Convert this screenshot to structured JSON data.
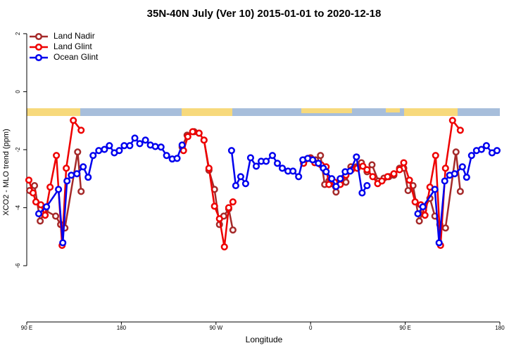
{
  "chart_data": {
    "type": "line",
    "title": "35N-40N July (Ver 10)   2015-01-01 to 2020-12-18",
    "x_label": "Longitude",
    "y_label": "XCO2 - MLO trend (ppm)",
    "xlim": [
      90,
      540
    ],
    "xticks": [
      {
        "value": 90,
        "label": "90 E"
      },
      180,
      {
        "value": 270,
        "label": "90 W"
      },
      {
        "value": 360,
        "label": "0"
      },
      {
        "value": 450,
        "label": "90 E"
      },
      {
        "value": 540,
        "label": "180"
      }
    ],
    "ylim": [
      -7.94,
      2.24
    ],
    "yticks": [
      2,
      0,
      -2,
      -4,
      -6
    ],
    "legend": "top-left",
    "series": [
      {
        "name": "Land Nadir",
        "color": "#a52a2a",
        "x": [
          92.7,
          97.4,
          102.8,
          107.5,
          117.5,
          122.2,
          126.3,
          138.4,
          141.7,
          null,
          237.8,
          242.5,
          249.2,
          253.9,
          258.6,
          263.3,
          268.6,
          273.3,
          277.4,
          282.1,
          286.1,
          null,
          354.6,
          360,
          364.7,
          369.4,
          373.4,
          377.4,
          384.2,
          388.2,
          393.6,
          398.3,
          403.6,
          408.3,
          413.7,
          418.4,
          424.5,
          429.8,
          434.5,
          439.2,
          444.6,
          448.6,
          452.7,
          457.4,
          463.4,
          467.4,
          473.5,
          478.2,
          482.9,
          488.3,
          498.3,
          502.4
        ],
        "values": [
          -3.41,
          -3.24,
          -4.46,
          -4.09,
          -4.29,
          -4.58,
          -4.7,
          -2.08,
          -3.44,
          null,
          -1.91,
          -1.5,
          -1.38,
          -1.43,
          -1.67,
          -2.71,
          -3.37,
          -4.58,
          -4.29,
          -4.04,
          -4.77,
          null,
          -2.35,
          -2.28,
          -2.35,
          -2.2,
          -3.2,
          -3.08,
          -3.46,
          -3.17,
          -3.12,
          -2.59,
          -2.59,
          -2.45,
          -2.76,
          -2.52,
          -3.08,
          -2.98,
          -2.93,
          -2.88,
          -2.64,
          -2.64,
          -3.41,
          -3.24,
          -4.46,
          -4.09,
          -3.68,
          -4.29,
          -4.58,
          -4.7,
          -2.08,
          -3.44
        ]
      },
      {
        "name": "Land Glint",
        "color": "#ee0000",
        "x": [
          92,
          96,
          98.7,
          103.4,
          107.5,
          112.2,
          118.2,
          123.6,
          127.6,
          134.3,
          141.7,
          null,
          239.1,
          243.2,
          247.8,
          253.9,
          258.6,
          263.3,
          268.6,
          273.3,
          278,
          282.1,
          286.1,
          null,
          353.3,
          358.6,
          364,
          370,
          374.8,
          377.4,
          382.8,
          388.2,
          393.6,
          398.9,
          404.3,
          409.7,
          413.7,
          419.1,
          423.8,
          427.8,
          433.2,
          439.2,
          444.6,
          448.6,
          454,
          459.4,
          464.8,
          468.8,
          473.5,
          478.9,
          483.6,
          488.3,
          495,
          502.4
        ],
        "values": [
          -3.05,
          -3.49,
          -3.8,
          -3.9,
          -4.26,
          -3.29,
          -2.2,
          -5.3,
          -2.64,
          -0.99,
          -1.33,
          null,
          -2.03,
          -1.55,
          -1.38,
          -1.43,
          -1.67,
          -2.64,
          -3.95,
          -4.38,
          -5.35,
          -4.0,
          -3.8,
          null,
          -2.47,
          -2.3,
          -2.45,
          -2.52,
          -2.59,
          -3.2,
          -3.12,
          -3.2,
          -2.88,
          -2.69,
          -2.64,
          -2.57,
          -2.69,
          -2.93,
          -3.17,
          -3.08,
          -2.93,
          -2.83,
          -2.69,
          -2.45,
          -3.05,
          -3.8,
          -3.9,
          -4.26,
          -3.29,
          -2.2,
          -5.3,
          -2.64,
          -0.99,
          -1.33
        ]
      },
      {
        "name": "Ocean Glint",
        "color": "#0000ee",
        "x": [
          101.4,
          108.8,
          120.2,
          124.3,
          128.3,
          132.4,
          137.7,
          143.7,
          148.4,
          153.1,
          158.5,
          163.9,
          168.6,
          173.3,
          178,
          182.7,
          188,
          192.8,
          197.5,
          202.9,
          207.6,
          212.3,
          217.7,
          223,
          228.4,
          233,
          237.8,
          null,
          284.8,
          288.8,
          293.5,
          298.2,
          302.9,
          308.3,
          313,
          317.7,
          323.7,
          328.4,
          333.1,
          338.5,
          343.2,
          348.6,
          352.6,
          357.3,
          362,
          367.4,
          372.1,
          374.8,
          380.1,
          384.2,
          388.2,
          392.9,
          397.6,
          403.6,
          409,
          413.7,
          null,
          462,
          466.8,
          478.2,
          482.2,
          487.6,
          492.3,
          497,
          504.4,
          508.4,
          513.1,
          517.8,
          522.5,
          527.2,
          532.6,
          537.3
        ],
        "values": [
          -4.21,
          -3.97,
          -3.37,
          -5.21,
          -3.08,
          -2.88,
          -2.83,
          -2.59,
          -2.95,
          -2.2,
          -2.03,
          -1.99,
          -1.86,
          -2.11,
          -2.03,
          -1.86,
          -1.86,
          -1.6,
          -1.79,
          -1.67,
          -1.84,
          -1.89,
          -1.91,
          -2.2,
          -2.32,
          -2.3,
          -1.84,
          null,
          -2.03,
          -3.24,
          -2.93,
          -3.17,
          -2.28,
          -2.57,
          -2.4,
          -2.4,
          -2.2,
          -2.47,
          -2.64,
          -2.74,
          -2.74,
          -2.93,
          -2.35,
          -2.3,
          -2.35,
          -2.47,
          -2.64,
          -2.76,
          -3.0,
          -3.27,
          -3.0,
          -2.76,
          -2.74,
          -2.25,
          -3.49,
          -3.24,
          null,
          -4.21,
          -3.97,
          -3.37,
          -5.21,
          -3.08,
          -2.88,
          -2.83,
          -2.59,
          -2.95,
          -2.2,
          -2.03,
          -1.99,
          -1.86,
          -2.11,
          -2.03
        ]
      }
    ]
  }
}
